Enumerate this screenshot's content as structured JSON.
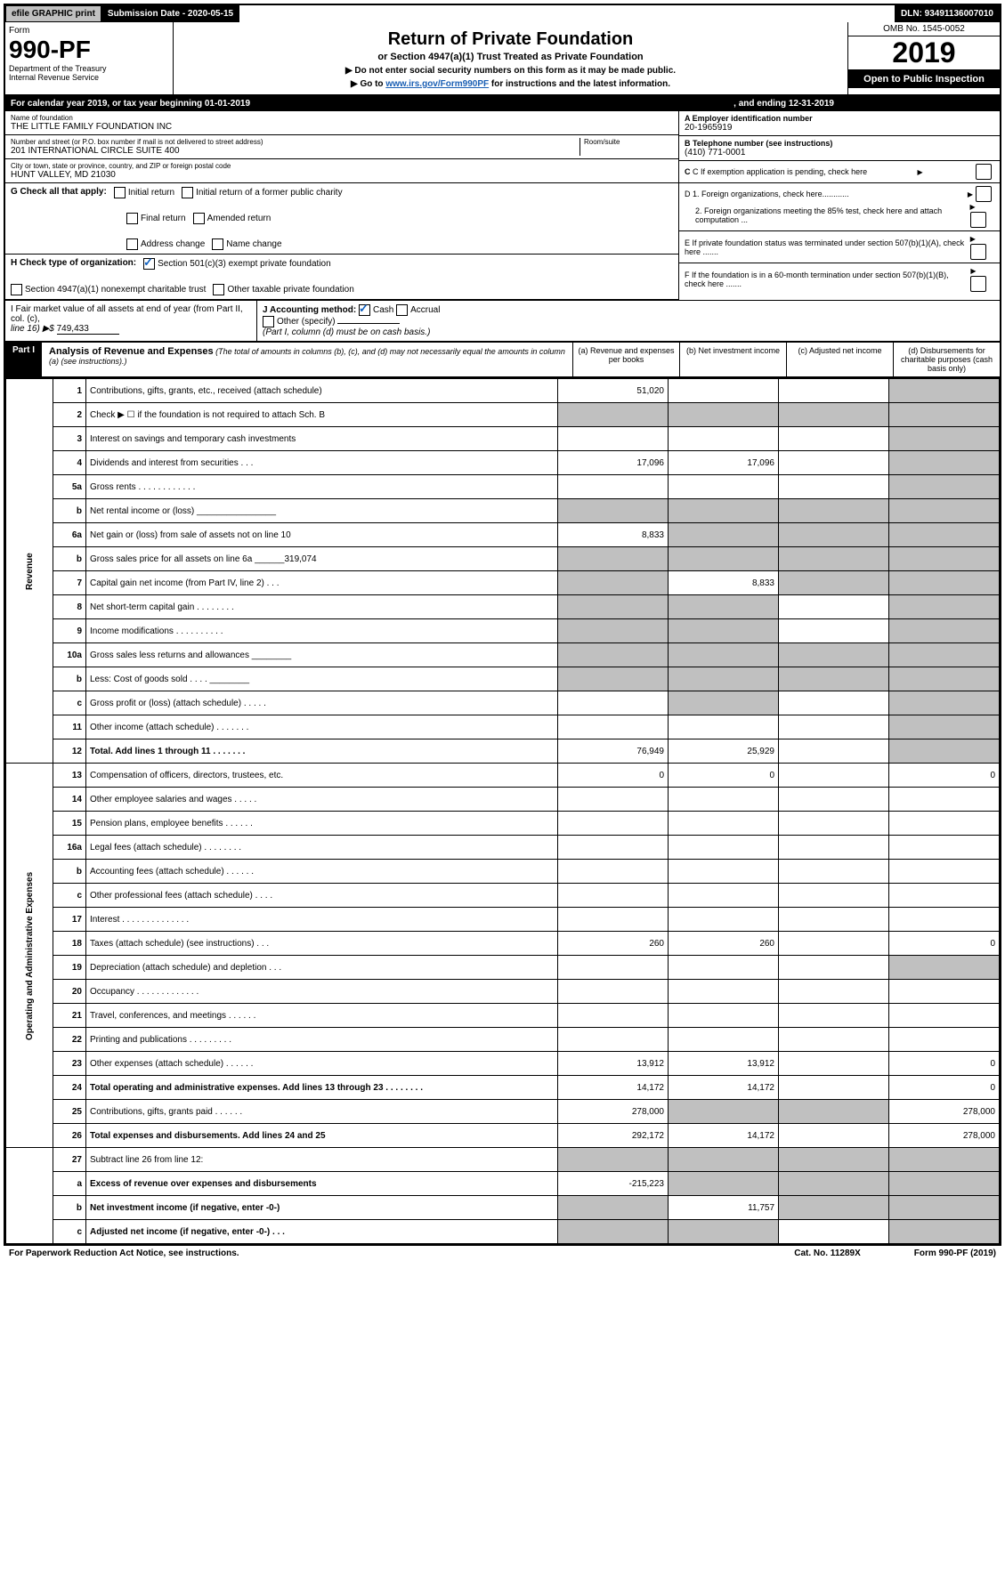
{
  "top": {
    "efile": "efile GRAPHIC print",
    "sub_label": "Submission Date - 2020-05-15",
    "dln": "DLN: 93491136007010"
  },
  "header": {
    "form": "Form",
    "number": "990-PF",
    "dept": "Department of the Treasury\nInternal Revenue Service",
    "title": "Return of Private Foundation",
    "subtitle": "or Section 4947(a)(1) Trust Treated as Private Foundation",
    "instr1": "▶ Do not enter social security numbers on this form as it may be made public.",
    "instr2_pre": "▶ Go to ",
    "instr2_link": "www.irs.gov/Form990PF",
    "instr2_post": " for instructions and the latest information.",
    "omb": "OMB No. 1545-0052",
    "year": "2019",
    "open": "Open to Public Inspection"
  },
  "cal": {
    "begin": "For calendar year 2019, or tax year beginning 01-01-2019",
    "end": ", and ending 12-31-2019"
  },
  "info": {
    "name_label": "Name of foundation",
    "name": "THE LITTLE FAMILY FOUNDATION INC",
    "addr_label": "Number and street (or P.O. box number if mail is not delivered to street address)",
    "addr": "201 INTERNATIONAL CIRCLE SUITE 400",
    "room_label": "Room/suite",
    "city_label": "City or town, state or province, country, and ZIP or foreign postal code",
    "city": "HUNT VALLEY, MD  21030",
    "a_label": "A Employer identification number",
    "a_val": "20-1965919",
    "b_label": "B Telephone number (see instructions)",
    "b_val": "(410) 771-0001",
    "c_label": "C If exemption application is pending, check here",
    "d1": "D 1. Foreign organizations, check here............",
    "d2": "2. Foreign organizations meeting the 85% test, check here and attach computation ...",
    "e": "E If private foundation status was terminated under section 507(b)(1)(A), check here .......",
    "f": "F If the foundation is in a 60-month termination under section 507(b)(1)(B), check here ......."
  },
  "g": {
    "label": "G Check all that apply:",
    "o1": "Initial return",
    "o2": "Initial return of a former public charity",
    "o3": "Final return",
    "o4": "Amended return",
    "o5": "Address change",
    "o6": "Name change"
  },
  "h": {
    "label": "H Check type of organization:",
    "o1": "Section 501(c)(3) exempt private foundation",
    "o2": "Section 4947(a)(1) nonexempt charitable trust",
    "o3": "Other taxable private foundation"
  },
  "i": {
    "label": "I Fair market value of all assets at end of year (from Part II, col. (c),",
    "line": "line 16) ▶$",
    "val": "749,433"
  },
  "j": {
    "label": "J Accounting method:",
    "cash": "Cash",
    "accrual": "Accrual",
    "other": "Other (specify)",
    "note": "(Part I, column (d) must be on cash basis.)"
  },
  "part1": {
    "title": "Part I",
    "heading": "Analysis of Revenue and Expenses",
    "desc": "(The total of amounts in columns (b), (c), and (d) may not necessarily equal the amounts in column (a) (see instructions).)",
    "ca": "(a) Revenue and expenses per books",
    "cb": "(b) Net investment income",
    "cc": "(c) Adjusted net income",
    "cd": "(d) Disbursements for charitable purposes (cash basis only)"
  },
  "sections": {
    "revenue": "Revenue",
    "expenses": "Operating and Administrative Expenses"
  },
  "rows": [
    {
      "n": "1",
      "l": "Contributions, gifts, grants, etc., received (attach schedule)",
      "a": "51,020",
      "b": "",
      "c": "",
      "d": "",
      "shade": [
        "d"
      ]
    },
    {
      "n": "2",
      "l": "Check ▶ ☐ if the foundation is not required to attach Sch. B",
      "a": "",
      "b": "",
      "c": "",
      "d": "",
      "shade": [
        "a",
        "b",
        "c",
        "d"
      ]
    },
    {
      "n": "3",
      "l": "Interest on savings and temporary cash investments",
      "a": "",
      "b": "",
      "c": "",
      "d": "",
      "shade": [
        "d"
      ]
    },
    {
      "n": "4",
      "l": "Dividends and interest from securities   .   .   .",
      "a": "17,096",
      "b": "17,096",
      "c": "",
      "d": "",
      "shade": [
        "d"
      ]
    },
    {
      "n": "5a",
      "l": "Gross rents   .   .   .   .   .   .   .   .   .   .   .   .",
      "a": "",
      "b": "",
      "c": "",
      "d": "",
      "shade": [
        "d"
      ]
    },
    {
      "n": "b",
      "l": "Net rental income or (loss) ________________",
      "a": "",
      "b": "",
      "c": "",
      "d": "",
      "shade": [
        "a",
        "b",
        "c",
        "d"
      ]
    },
    {
      "n": "6a",
      "l": "Net gain or (loss) from sale of assets not on line 10",
      "a": "8,833",
      "b": "",
      "c": "",
      "d": "",
      "shade": [
        "b",
        "c",
        "d"
      ]
    },
    {
      "n": "b",
      "l": "Gross sales price for all assets on line 6a ______319,074",
      "a": "",
      "b": "",
      "c": "",
      "d": "",
      "shade": [
        "a",
        "b",
        "c",
        "d"
      ]
    },
    {
      "n": "7",
      "l": "Capital gain net income (from Part IV, line 2)   .   .   .",
      "a": "",
      "b": "8,833",
      "c": "",
      "d": "",
      "shade": [
        "a",
        "c",
        "d"
      ]
    },
    {
      "n": "8",
      "l": "Net short-term capital gain   .   .   .   .   .   .   .   .",
      "a": "",
      "b": "",
      "c": "",
      "d": "",
      "shade": [
        "a",
        "b",
        "d"
      ]
    },
    {
      "n": "9",
      "l": "Income modifications   .   .   .   .   .   .   .   .   .   .",
      "a": "",
      "b": "",
      "c": "",
      "d": "",
      "shade": [
        "a",
        "b",
        "d"
      ]
    },
    {
      "n": "10a",
      "l": "Gross sales less returns and allowances ________",
      "a": "",
      "b": "",
      "c": "",
      "d": "",
      "shade": [
        "a",
        "b",
        "c",
        "d"
      ]
    },
    {
      "n": "b",
      "l": "Less: Cost of goods sold   .   .   .   . ________",
      "a": "",
      "b": "",
      "c": "",
      "d": "",
      "shade": [
        "a",
        "b",
        "c",
        "d"
      ]
    },
    {
      "n": "c",
      "l": "Gross profit or (loss) (attach schedule)   .   .   .   .   .",
      "a": "",
      "b": "",
      "c": "",
      "d": "",
      "shade": [
        "b",
        "d"
      ]
    },
    {
      "n": "11",
      "l": "Other income (attach schedule)   .   .   .   .   .   .   .",
      "a": "",
      "b": "",
      "c": "",
      "d": "",
      "shade": [
        "d"
      ]
    },
    {
      "n": "12",
      "l": "Total. Add lines 1 through 11   .   .   .   .   .   .   .",
      "a": "76,949",
      "b": "25,929",
      "c": "",
      "d": "",
      "shade": [
        "d"
      ],
      "bold": true
    }
  ],
  "rows2": [
    {
      "n": "13",
      "l": "Compensation of officers, directors, trustees, etc.",
      "a": "0",
      "b": "0",
      "c": "",
      "d": "0"
    },
    {
      "n": "14",
      "l": "Other employee salaries and wages   .   .   .   .   .",
      "a": "",
      "b": "",
      "c": "",
      "d": ""
    },
    {
      "n": "15",
      "l": "Pension plans, employee benefits   .   .   .   .   .   .",
      "a": "",
      "b": "",
      "c": "",
      "d": ""
    },
    {
      "n": "16a",
      "l": "Legal fees (attach schedule)   .   .   .   .   .   .   .   .",
      "a": "",
      "b": "",
      "c": "",
      "d": ""
    },
    {
      "n": "b",
      "l": "Accounting fees (attach schedule)   .   .   .   .   .   .",
      "a": "",
      "b": "",
      "c": "",
      "d": ""
    },
    {
      "n": "c",
      "l": "Other professional fees (attach schedule)   .   .   .   .",
      "a": "",
      "b": "",
      "c": "",
      "d": ""
    },
    {
      "n": "17",
      "l": "Interest   .   .   .   .   .   .   .   .   .   .   .   .   .   .",
      "a": "",
      "b": "",
      "c": "",
      "d": ""
    },
    {
      "n": "18",
      "l": "Taxes (attach schedule) (see instructions)   .   .   .",
      "a": "260",
      "b": "260",
      "c": "",
      "d": "0"
    },
    {
      "n": "19",
      "l": "Depreciation (attach schedule) and depletion   .   .   .",
      "a": "",
      "b": "",
      "c": "",
      "d": "",
      "shade": [
        "d"
      ]
    },
    {
      "n": "20",
      "l": "Occupancy   .   .   .   .   .   .   .   .   .   .   .   .   .",
      "a": "",
      "b": "",
      "c": "",
      "d": ""
    },
    {
      "n": "21",
      "l": "Travel, conferences, and meetings   .   .   .   .   .   .",
      "a": "",
      "b": "",
      "c": "",
      "d": ""
    },
    {
      "n": "22",
      "l": "Printing and publications   .   .   .   .   .   .   .   .   .",
      "a": "",
      "b": "",
      "c": "",
      "d": ""
    },
    {
      "n": "23",
      "l": "Other expenses (attach schedule)   .   .   .   .   .   .",
      "a": "13,912",
      "b": "13,912",
      "c": "",
      "d": "0"
    },
    {
      "n": "24",
      "l": "Total operating and administrative expenses. Add lines 13 through 23   .   .   .   .   .   .   .   .",
      "a": "14,172",
      "b": "14,172",
      "c": "",
      "d": "0",
      "bold": true
    },
    {
      "n": "25",
      "l": "Contributions, gifts, grants paid   .   .   .   .   .   .",
      "a": "278,000",
      "b": "",
      "c": "",
      "d": "278,000",
      "shade": [
        "b",
        "c"
      ]
    },
    {
      "n": "26",
      "l": "Total expenses and disbursements. Add lines 24 and 25",
      "a": "292,172",
      "b": "14,172",
      "c": "",
      "d": "278,000",
      "bold": true
    }
  ],
  "rows3": [
    {
      "n": "27",
      "l": "Subtract line 26 from line 12:",
      "a": "",
      "b": "",
      "c": "",
      "d": "",
      "shade": [
        "a",
        "b",
        "c",
        "d"
      ]
    },
    {
      "n": "a",
      "l": "Excess of revenue over expenses and disbursements",
      "a": "-215,223",
      "b": "",
      "c": "",
      "d": "",
      "shade": [
        "b",
        "c",
        "d"
      ],
      "bold": true
    },
    {
      "n": "b",
      "l": "Net investment income (if negative, enter -0-)",
      "a": "",
      "b": "11,757",
      "c": "",
      "d": "",
      "shade": [
        "a",
        "c",
        "d"
      ],
      "bold": true
    },
    {
      "n": "c",
      "l": "Adjusted net income (if negative, enter -0-)   .   .   .",
      "a": "",
      "b": "",
      "c": "",
      "d": "",
      "shade": [
        "a",
        "b",
        "d"
      ],
      "bold": true
    }
  ],
  "footer": {
    "left": "For Paperwork Reduction Act Notice, see instructions.",
    "cat": "Cat. No. 11289X",
    "form": "Form 990-PF (2019)"
  }
}
